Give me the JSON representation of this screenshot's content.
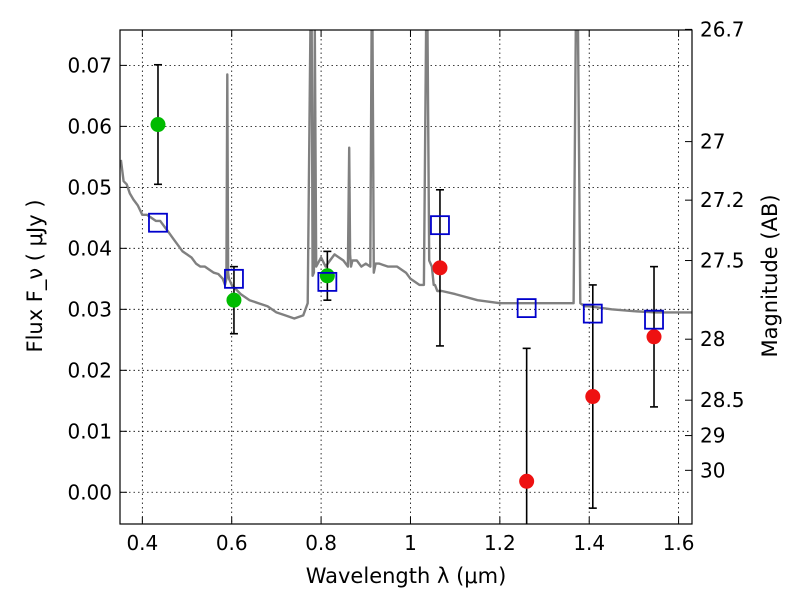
{
  "chart_data": {
    "type": "scatter",
    "xlabel": "Wavelength  λ (μm)",
    "ylabel": "Flux  F_ν  ( μJy )",
    "y2label": "Magnitude (AB)",
    "xlim": [
      0.35,
      1.63
    ],
    "ylim": [
      -0.0052,
      0.0758
    ],
    "grid": true,
    "x_ticks": [
      0.4,
      0.6,
      0.8,
      1.0,
      1.2,
      1.4,
      1.6
    ],
    "x_tick_labels": [
      "0.4",
      "0.6",
      "0.8",
      "1",
      "1.2",
      "1.4",
      "1.6"
    ],
    "y_ticks": [
      0.0,
      0.01,
      0.02,
      0.03,
      0.04,
      0.05,
      0.06,
      0.07
    ],
    "y_tick_labels": [
      "0.00",
      "0.01",
      "0.02",
      "0.03",
      "0.04",
      "0.05",
      "0.06",
      "0.07"
    ],
    "y2_tick_labels": [
      "26.7",
      "27",
      "27.2",
      "27.5",
      "28",
      "28.5",
      "29",
      "30"
    ],
    "y2_tick_flux": [
      0.0759,
      0.0575,
      0.0479,
      0.038,
      0.0251,
      0.0151,
      0.0093,
      0.0036
    ],
    "colors": {
      "model": "#808080",
      "green": "#00bb00",
      "red": "#ee1111",
      "box": "#0000cc",
      "errorbar": "#000000"
    },
    "series": [
      {
        "marker": "green-circle",
        "points": [
          {
            "x": 0.435,
            "y": 0.0603,
            "err": 0.0098
          },
          {
            "x": 0.605,
            "y": 0.0315,
            "err": 0.0055
          },
          {
            "x": 0.814,
            "y": 0.0355,
            "err": 0.004
          }
        ]
      },
      {
        "marker": "red-circle",
        "points": [
          {
            "x": 1.066,
            "y": 0.0368,
            "err": 0.0128
          },
          {
            "x": 1.26,
            "y": 0.0018,
            "err": 0.0218
          },
          {
            "x": 1.408,
            "y": 0.0157,
            "err": 0.0183
          },
          {
            "x": 1.545,
            "y": 0.0255,
            "err": 0.0115
          }
        ]
      },
      {
        "marker": "blue-open-square",
        "points": [
          {
            "x": 0.435,
            "y": 0.0442
          },
          {
            "x": 0.605,
            "y": 0.035
          },
          {
            "x": 0.814,
            "y": 0.0345
          },
          {
            "x": 1.066,
            "y": 0.0438
          },
          {
            "x": 1.26,
            "y": 0.0302
          },
          {
            "x": 1.408,
            "y": 0.0293
          },
          {
            "x": 1.545,
            "y": 0.0283
          }
        ]
      },
      {
        "marker": "grey-line",
        "type": "line",
        "x": [
          0.352,
          0.358,
          0.365,
          0.372,
          0.38,
          0.39,
          0.4,
          0.41,
          0.42,
          0.43,
          0.44,
          0.45,
          0.46,
          0.47,
          0.48,
          0.49,
          0.5,
          0.51,
          0.52,
          0.53,
          0.54,
          0.55,
          0.56,
          0.57,
          0.58,
          0.585,
          0.588,
          0.59,
          0.592,
          0.594,
          0.597,
          0.6,
          0.62,
          0.64,
          0.66,
          0.68,
          0.7,
          0.72,
          0.74,
          0.76,
          0.77,
          0.776,
          0.779,
          0.781,
          0.784,
          0.786,
          0.789,
          0.8,
          0.81,
          0.82,
          0.83,
          0.84,
          0.85,
          0.86,
          0.863,
          0.865,
          0.867,
          0.87,
          0.88,
          0.89,
          0.9,
          0.91,
          0.913,
          0.915,
          0.918,
          0.922,
          0.93,
          0.95,
          0.97,
          0.99,
          1.0,
          1.02,
          1.03,
          1.035,
          1.038,
          1.042,
          1.048,
          1.052,
          1.055,
          1.06,
          1.07,
          1.1,
          1.15,
          1.2,
          1.25,
          1.3,
          1.35,
          1.365,
          1.37,
          1.375,
          1.38,
          1.39,
          1.4,
          1.45,
          1.5,
          1.55,
          1.6,
          1.63
        ],
        "y": [
          0.0545,
          0.051,
          0.0505,
          0.049,
          0.048,
          0.047,
          0.0455,
          0.0455,
          0.045,
          0.0445,
          0.0445,
          0.0435,
          0.0425,
          0.0415,
          0.0405,
          0.0395,
          0.039,
          0.0385,
          0.0375,
          0.037,
          0.037,
          0.0365,
          0.036,
          0.0358,
          0.035,
          0.034,
          0.035,
          0.0685,
          0.036,
          0.035,
          0.0345,
          0.034,
          0.0325,
          0.0315,
          0.031,
          0.0305,
          0.0295,
          0.029,
          0.0285,
          0.029,
          0.031,
          0.076,
          0.076,
          0.0355,
          0.036,
          0.076,
          0.037,
          0.0385,
          0.037,
          0.038,
          0.039,
          0.0385,
          0.038,
          0.037,
          0.0565,
          0.039,
          0.037,
          0.038,
          0.038,
          0.037,
          0.0375,
          0.037,
          0.076,
          0.076,
          0.036,
          0.0375,
          0.0375,
          0.037,
          0.037,
          0.036,
          0.035,
          0.034,
          0.034,
          0.076,
          0.076,
          0.038,
          0.037,
          0.034,
          0.034,
          0.033,
          0.033,
          0.0325,
          0.0315,
          0.031,
          0.031,
          0.031,
          0.031,
          0.031,
          0.076,
          0.076,
          0.031,
          0.0305,
          0.0305,
          0.03,
          0.0297,
          0.0295,
          0.0295,
          0.0295
        ]
      }
    ]
  }
}
